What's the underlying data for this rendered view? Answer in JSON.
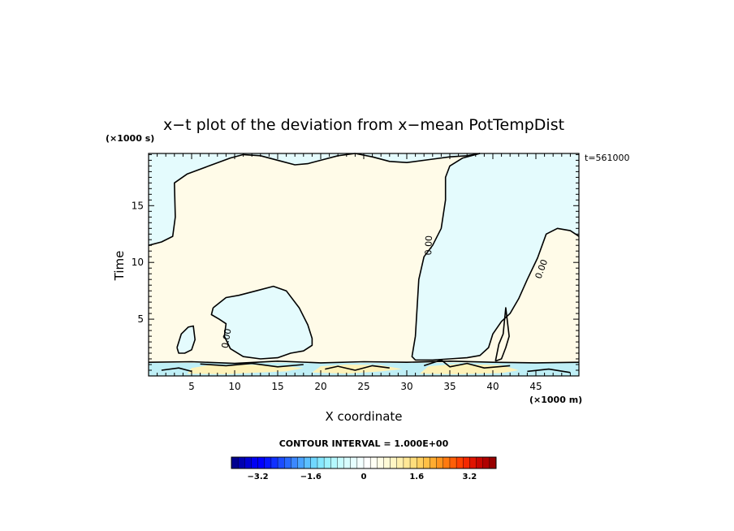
{
  "chart_data": {
    "type": "contour",
    "title": "x−t plot of the deviation from x−mean PotTempDist",
    "xlabel": "X coordinate",
    "ylabel": "Time",
    "x_unit": "(×1000 m)",
    "y_unit": "(×1000 s)",
    "xlim": [
      0,
      50
    ],
    "ylim": [
      0,
      19.6
    ],
    "x_ticks": [
      5,
      10,
      15,
      20,
      25,
      30,
      35,
      40,
      45
    ],
    "x_tick_labels": [
      "5",
      "10",
      "15",
      "20",
      "25",
      "30",
      "35",
      "40",
      "45"
    ],
    "y_ticks": [
      5,
      10,
      15
    ],
    "y_tick_labels": [
      "5",
      "10",
      "15"
    ],
    "time_label": "t=561000",
    "contour_interval_text": "CONTOUR INTERVAL = 1.000E+00",
    "contour_label": "0.00",
    "colors": {
      "positive": "#fffbe8",
      "negative": "#e4fbfd",
      "positive_strong": "#fff2b8",
      "negative_strong": "#bfeff6",
      "line": "#000000"
    },
    "colorbar": {
      "min": -4.0,
      "max": 4.0,
      "step": 0.2,
      "tick_values": [
        -3.2,
        -1.6,
        0,
        1.6,
        3.2
      ],
      "tick_labels": [
        "−3.2",
        "−1.6",
        "0",
        "1.6",
        "3.2"
      ],
      "colors": [
        "#00008f",
        "#0000b0",
        "#0000d2",
        "#0000f4",
        "#0000ff",
        "#0616ff",
        "#1030ff",
        "#1c4cff",
        "#2868ff",
        "#3c88ff",
        "#4aa4ff",
        "#5cc0ff",
        "#70d8ff",
        "#86e8ff",
        "#9cf2ff",
        "#b4f8ff",
        "#c8fcff",
        "#d8fdff",
        "#e6feff",
        "#f4ffff",
        "#ffffff",
        "#fffff4",
        "#fffde6",
        "#fffad6",
        "#fff6c4",
        "#fff0ae",
        "#ffe896",
        "#ffde7c",
        "#ffd060",
        "#ffc046",
        "#ffac30",
        "#ff941e",
        "#ff7a10",
        "#ff5e06",
        "#ff4000",
        "#f42800",
        "#e01400",
        "#c80600",
        "#b00000",
        "#980000"
      ]
    }
  }
}
